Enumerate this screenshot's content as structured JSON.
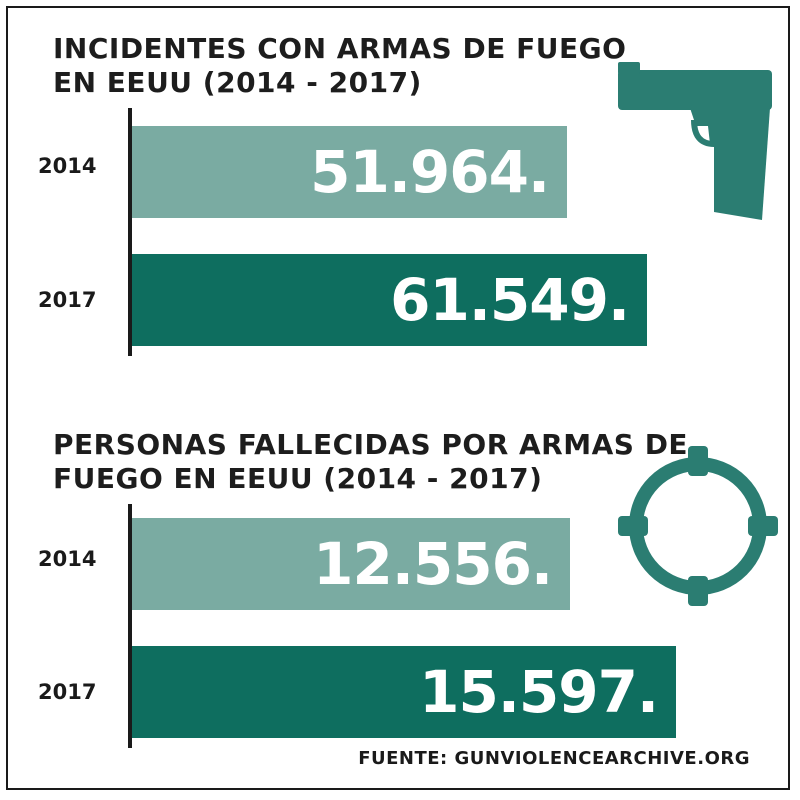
{
  "chart_data": [
    {
      "type": "bar",
      "orientation": "horizontal",
      "title": "INCIDENTES CON ARMAS DE FUEGO\nEN EEUU (2014 - 2017)",
      "categories": [
        "2014",
        "2017"
      ],
      "values": [
        51964,
        61549
      ],
      "value_labels": [
        "51.964.",
        "61.549."
      ],
      "xlim": [
        0,
        70000
      ],
      "colors": [
        "#7aaba2",
        "#0e6e5f"
      ]
    },
    {
      "type": "bar",
      "orientation": "horizontal",
      "title": "PERSONAS FALLECIDAS POR ARMAS DE\nFUEGO EN EEUU (2014 - 2017)",
      "categories": [
        "2014",
        "2017"
      ],
      "values": [
        12556,
        15597
      ],
      "value_labels": [
        "12.556.",
        "15.597."
      ],
      "xlim": [
        0,
        16800
      ],
      "colors": [
        "#7aaba2",
        "#0e6e5f"
      ]
    }
  ],
  "source": "FUENTE: GUNVIOLENCEARCHIVE.ORG",
  "icons": [
    "pistol-icon",
    "crosshair-icon"
  ],
  "accent_color": "#2b7d72"
}
